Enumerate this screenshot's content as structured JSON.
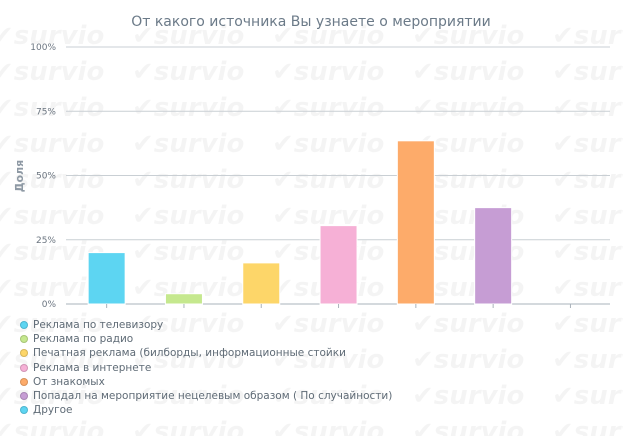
{
  "watermark": "survio",
  "chart_data": {
    "type": "bar",
    "title": "От какого источника Вы узнаете о мероприятии",
    "ylabel": "Доля",
    "ylim": [
      0,
      100
    ],
    "yticks": [
      "0%",
      "25%",
      "50%",
      "75%",
      "100%"
    ],
    "ytick_values": [
      0,
      25,
      50,
      75,
      100
    ],
    "grid": true,
    "legend_position": "bottom-left",
    "categories": [
      "Реклама по телевизору",
      "Реклама по радио",
      "Печатная реклама (билборды, информационные стойки",
      "Реклама в интернете",
      "От знакомых",
      "Попадал на мероприятие нецелевым образом ( По случайности)",
      "Другое"
    ],
    "values": [
      20,
      4,
      16,
      30.5,
      63.5,
      37.5,
      0
    ],
    "colors": [
      "#5dd5f2",
      "#c5e88e",
      "#fdd669",
      "#f6b0d6",
      "#fdab6a",
      "#c69dd4",
      "#5dd5f2"
    ]
  }
}
